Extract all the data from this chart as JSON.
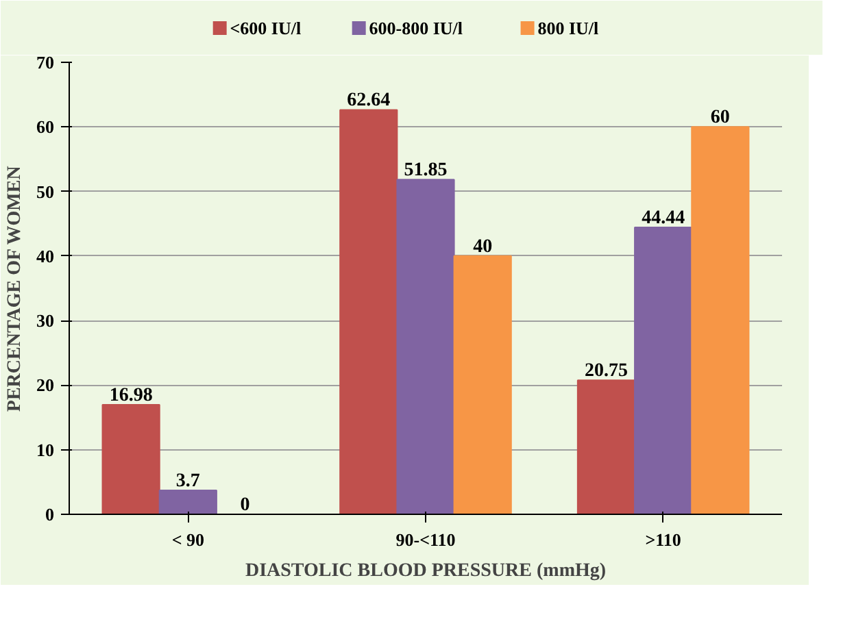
{
  "chart_data": {
    "type": "bar",
    "xlabel": "DIASTOLIC BLOOD PRESSURE (mmHg)",
    "ylabel": "PERCENTAGE OF WOMEN",
    "categories": [
      "< 90",
      "90-<110",
      ">110"
    ],
    "series": [
      {
        "name": "<600 IU/l",
        "color": "#c0504d",
        "values": [
          16.98,
          62.64,
          20.75
        ]
      },
      {
        "name": "600-800 IU/l",
        "color": "#8064a2",
        "values": [
          3.7,
          51.85,
          44.44
        ]
      },
      {
        "name": "800 IU/l",
        "color": "#f79646",
        "values": [
          0,
          40,
          60
        ]
      }
    ],
    "ylim": [
      0,
      70
    ],
    "yticks": [
      0,
      10,
      20,
      30,
      40,
      50,
      60,
      70
    ],
    "grid": "y",
    "legend": "top",
    "data_labels": true
  }
}
